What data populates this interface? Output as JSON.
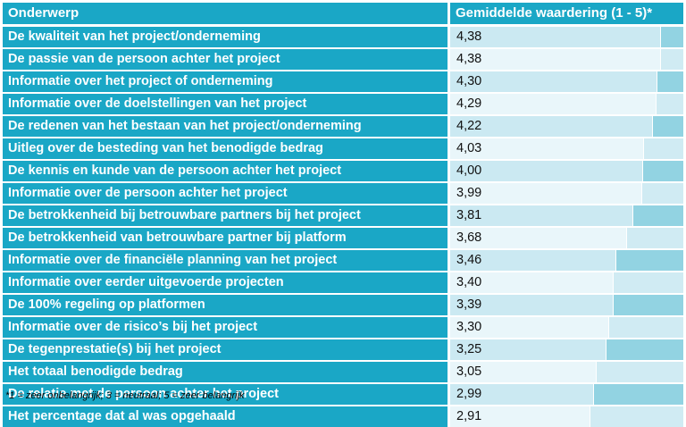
{
  "chart_data": {
    "type": "table",
    "header": {
      "topic": "Onderwerp",
      "value": "Gemiddelde waardering (1 - 5)*"
    },
    "rows": [
      {
        "label": "De kwaliteit van het project/onderneming",
        "display": "4,38",
        "value": 4.38
      },
      {
        "label": "De passie van de persoon achter het project",
        "display": "4,38",
        "value": 4.38
      },
      {
        "label": "Informatie over het project of onderneming",
        "display": "4,30",
        "value": 4.3
      },
      {
        "label": "Informatie over de doelstellingen van het project",
        "display": "4,29",
        "value": 4.29
      },
      {
        "label": "De redenen van het bestaan van het project/onderneming",
        "display": "4,22",
        "value": 4.22
      },
      {
        "label": "Uitleg over de besteding van het benodigde bedrag",
        "display": "4,03",
        "value": 4.03
      },
      {
        "label": "De kennis en kunde van de persoon achter het project",
        "display": "4,00",
        "value": 4.0
      },
      {
        "label": "Informatie over de persoon achter het project",
        "display": "3,99",
        "value": 3.99
      },
      {
        "label": "De betrokkenheid bij betrouwbare partners bij het project",
        "display": "3,81",
        "value": 3.81
      },
      {
        "label": "De betrokkenheid van betrouwbare partner bij platform",
        "display": "3,68",
        "value": 3.68
      },
      {
        "label": "Informatie over de financiële planning van het project",
        "display": "3,46",
        "value": 3.46
      },
      {
        "label": "Informatie over eerder uitgevoerde projecten",
        "display": "3,40",
        "value": 3.4
      },
      {
        "label": "De 100% regeling op platformen",
        "display": "3,39",
        "value": 3.39
      },
      {
        "label": "Informatie over de risico’s bij het project",
        "display": "3,30",
        "value": 3.3
      },
      {
        "label": "De tegenprestatie(s) bij het project",
        "display": "3,25",
        "value": 3.25
      },
      {
        "label": "Het totaal benodigde bedrag",
        "display": "3,05",
        "value": 3.05
      },
      {
        "label": "De relatie met de persoon achter het project",
        "display": "2,99",
        "value": 2.99
      },
      {
        "label": "Het percentage dat al was opgehaald",
        "display": "2,91",
        "value": 2.91
      }
    ],
    "footnote": "*1 = zeer onbelangrijk; 3 = neutraal; 5 = zeer belangrijk",
    "colors": {
      "header": "#1aa7c6",
      "cell_dark": "#92d3e2",
      "cell_light": "#d0ebf3",
      "bar_dark": "#cbe9f2",
      "bar_light": "#e9f6fa"
    }
  }
}
